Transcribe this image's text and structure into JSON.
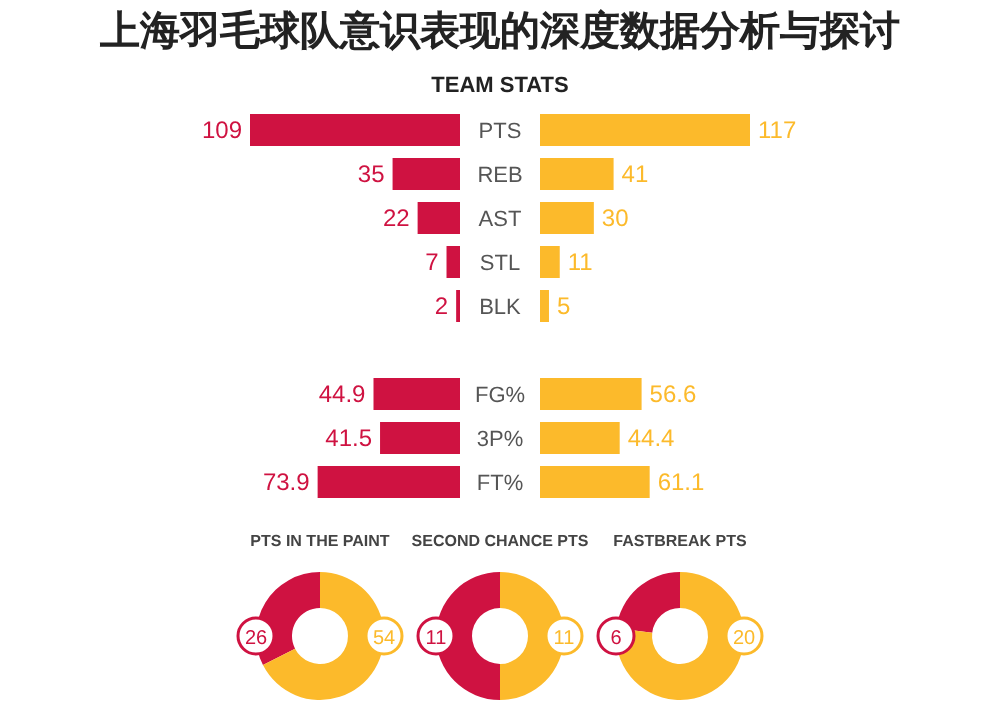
{
  "chart_data": [
    {
      "type": "bar",
      "orientation": "horizontal",
      "title": "上海羽毛球队意识表现的深度数据分析与探讨",
      "subtitle": "TEAM STATS",
      "categories": [
        "PTS",
        "REB",
        "AST",
        "STL",
        "BLK",
        null,
        "FG%",
        "3P%",
        "FT%"
      ],
      "data_labels": true,
      "series": [
        {
          "color": "#cf1241",
          "values": [
            109,
            35,
            22,
            7,
            2,
            null,
            44.9,
            41.5,
            73.9
          ]
        }
      ]
    },
    {
      "type": "bar",
      "orientation": "horizontal",
      "categories": [
        null,
        null,
        null,
        null,
        null,
        null,
        null,
        null,
        null
      ],
      "data_labels": true,
      "series": [
        {
          "color": "#fcba2b",
          "values": [
            117,
            41,
            30,
            11,
            5,
            null,
            56.6,
            44.4,
            61.1
          ]
        }
      ]
    },
    {
      "type": "donut",
      "title": "PTS IN THE PAINT",
      "categories": [
        null,
        null
      ],
      "values": [
        26,
        54
      ],
      "colors": [
        "#cf1241",
        "#fcba2b"
      ],
      "data_labels": true
    },
    {
      "type": "donut",
      "title": "SECOND CHANCE PTS",
      "categories": [
        null,
        null
      ],
      "values": [
        11,
        11
      ],
      "colors": [
        "#cf1241",
        "#fcba2b"
      ],
      "data_labels": true
    },
    {
      "type": "donut",
      "title": "FASTBREAK PTS",
      "categories": [
        null,
        null
      ],
      "values": [
        6,
        20
      ],
      "colors": [
        "#cf1241",
        "#fcba2b"
      ],
      "data_labels": true
    }
  ]
}
